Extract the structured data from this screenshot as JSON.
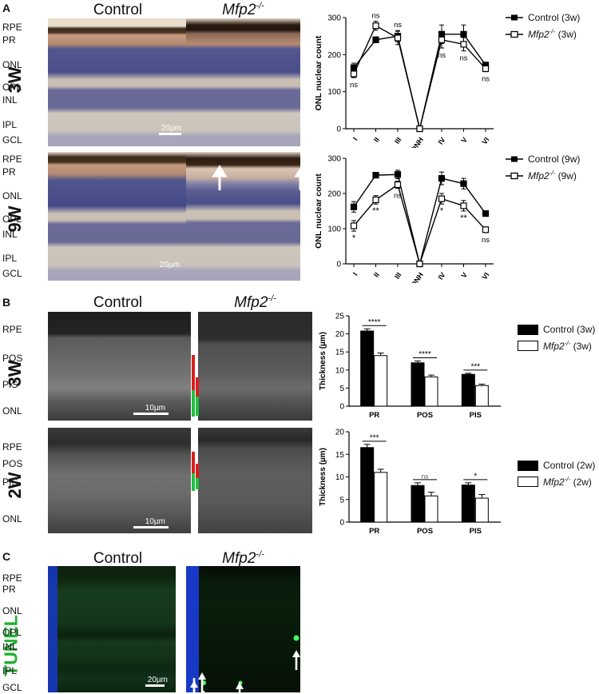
{
  "panels": {
    "A": {
      "letter": "A",
      "col_titles": [
        "Control",
        "Mfp2-/-"
      ],
      "rows": [
        {
          "label": "3W",
          "layers": [
            "RPE",
            "PR",
            "ONL",
            "OPL",
            "INL",
            "IPL",
            "GCL"
          ],
          "scalebar": "20µm"
        },
        {
          "label": "9W",
          "layers": [
            "RPE",
            "PR",
            "ONL",
            "OPL",
            "INL",
            "IPL",
            "GCL"
          ],
          "scalebar": "20µm"
        }
      ]
    },
    "B": {
      "letter": "B",
      "col_titles": [
        "Control",
        "Mfp2-/-"
      ],
      "rows": [
        {
          "label": "3W",
          "layers": [
            "RPE",
            "POS",
            "PIS",
            "ONL"
          ],
          "scalebar": "10µm"
        },
        {
          "label": "2W",
          "layers": [
            "RPE",
            "POS",
            "PIS",
            "ONL"
          ],
          "scalebar": "10µm"
        }
      ]
    },
    "C": {
      "letter": "C",
      "col_titles": [
        "Control",
        "Mfp2-/-"
      ],
      "side_label": "TUNEL",
      "layers": [
        "RPE",
        "PR",
        "ONL",
        "OPL",
        "INL",
        "IPL",
        "GCL"
      ],
      "scalebar": "20µm"
    }
  },
  "colors": {
    "he_bg": "#d8c8b0",
    "onl": "#4a4f8a",
    "inl": "#6b6a98",
    "ipl": "#c9c3ba",
    "rpe_dark": "#3a2a1a",
    "pr": "#b58a72",
    "gray_bg": "#2e2e2e",
    "tunel_green": "#0f3a16",
    "dapi_blue": "#1838c8",
    "bar_red": "#d82020",
    "bar_green": "#20c040",
    "tunel_label": "#20b030"
  },
  "chart_data": [
    {
      "type": "line",
      "x": [
        "I",
        "II",
        "III",
        "ONH",
        "IV",
        "V",
        "VI"
      ],
      "ylabel": "ONL nuclear count",
      "ylim": [
        0,
        300
      ],
      "yticks": [
        0,
        100,
        200,
        300
      ],
      "series": [
        {
          "name": "Control (3w)",
          "marker": "filled-square",
          "values": [
            165,
            240,
            250,
            0,
            255,
            255,
            172
          ],
          "errors": [
            12,
            8,
            15,
            0,
            25,
            25,
            6
          ]
        },
        {
          "name": "Mfp2-/- (3w)",
          "marker": "open-square",
          "values": [
            148,
            278,
            245,
            0,
            240,
            228,
            162
          ],
          "errors": [
            10,
            12,
            18,
            0,
            22,
            18,
            8
          ]
        }
      ],
      "annotations": [
        {
          "x": "I",
          "text": "ns",
          "pos": "below"
        },
        {
          "x": "II",
          "text": "ns",
          "pos": "above"
        },
        {
          "x": "III",
          "text": "ns",
          "pos": "above"
        },
        {
          "x": "IV",
          "text": "ns",
          "pos": "below"
        },
        {
          "x": "V",
          "text": "ns",
          "pos": "below"
        },
        {
          "x": "VI",
          "text": "ns",
          "pos": "below"
        }
      ]
    },
    {
      "type": "line",
      "x": [
        "I",
        "II",
        "III",
        "ONH",
        "IV",
        "V",
        "VI"
      ],
      "ylabel": "ONL nuclear count",
      "ylim": [
        0,
        300
      ],
      "yticks": [
        0,
        100,
        200,
        300
      ],
      "series": [
        {
          "name": "Control (9w)",
          "marker": "filled-square",
          "values": [
            162,
            252,
            254,
            0,
            243,
            228,
            143
          ],
          "errors": [
            15,
            4,
            12,
            0,
            18,
            15,
            5
          ]
        },
        {
          "name": "Mfp2-/- (9w)",
          "marker": "open-square",
          "values": [
            108,
            182,
            225,
            0,
            185,
            165,
            97
          ],
          "errors": [
            15,
            12,
            10,
            0,
            15,
            15,
            8
          ]
        }
      ],
      "annotations": [
        {
          "x": "I",
          "text": "*",
          "pos": "below"
        },
        {
          "x": "II",
          "text": "**",
          "pos": "below"
        },
        {
          "x": "III",
          "text": "ns",
          "pos": "below"
        },
        {
          "x": "IV",
          "text": "*",
          "pos": "below"
        },
        {
          "x": "V",
          "text": "**",
          "pos": "below"
        },
        {
          "x": "VI",
          "text": "ns",
          "pos": "below"
        }
      ]
    },
    {
      "type": "bar",
      "categories": [
        "PR",
        "POS",
        "PIS"
      ],
      "ylabel": "Thickness (µm)",
      "ylim": [
        0,
        25
      ],
      "yticks": [
        0,
        5,
        10,
        15,
        20,
        25
      ],
      "series": [
        {
          "name": "Control (3w)",
          "fill": "black",
          "values": [
            20.8,
            12.0,
            8.8
          ],
          "errors": [
            0.6,
            0.5,
            0.3
          ]
        },
        {
          "name": "Mfp2-/- (3w)",
          "fill": "white",
          "values": [
            14.0,
            8.1,
            5.7
          ],
          "errors": [
            0.7,
            0.5,
            0.4
          ]
        }
      ],
      "significance": [
        "****",
        "****",
        "***"
      ]
    },
    {
      "type": "bar",
      "categories": [
        "PR",
        "POS",
        "PIS"
      ],
      "ylabel": "Thickness (µm)",
      "ylim": [
        0,
        20
      ],
      "yticks": [
        0,
        5,
        10,
        15,
        20
      ],
      "series": [
        {
          "name": "Control (2w)",
          "fill": "black",
          "values": [
            16.5,
            8.1,
            8.2
          ],
          "errors": [
            0.7,
            0.6,
            0.5
          ]
        },
        {
          "name": "Mfp2-/- (2w)",
          "fill": "white",
          "values": [
            11.0,
            5.8,
            5.3
          ],
          "errors": [
            0.7,
            0.8,
            0.8
          ]
        }
      ],
      "significance": [
        "***",
        "ns",
        "*"
      ]
    }
  ]
}
